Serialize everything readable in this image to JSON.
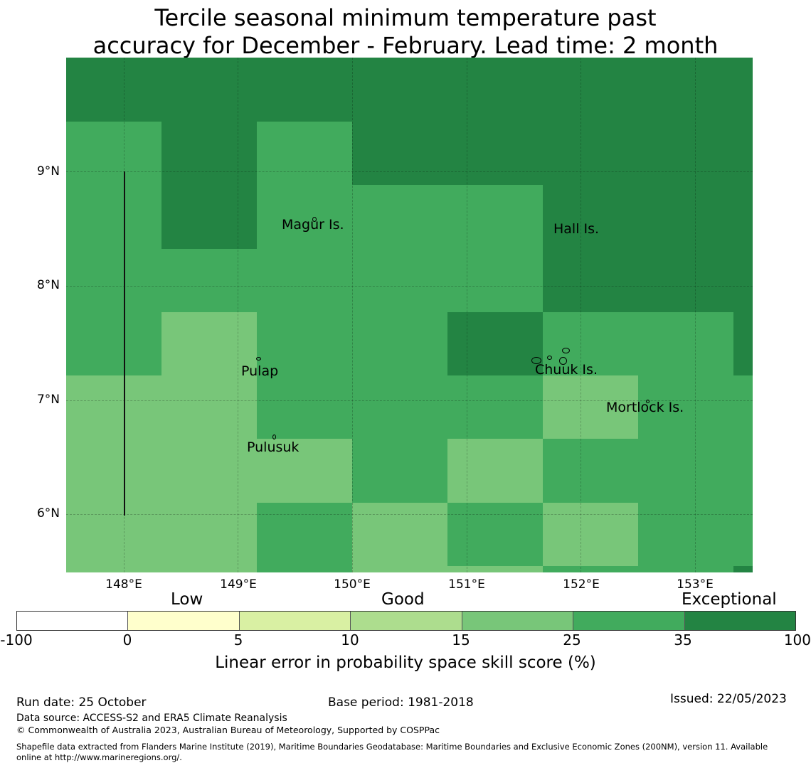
{
  "title_line1": "Tercile seasonal minimum temperature past",
  "title_line2": "accuracy for December - February. Lead time: 2 month",
  "map": {
    "lon_ticks": [
      "148°E",
      "149°E",
      "150°E",
      "151°E",
      "152°E",
      "153°E"
    ],
    "lat_ticks": [
      "9°N",
      "8°N",
      "7°N",
      "6°N"
    ],
    "places": [
      "Magur Is.",
      "Hall Is.",
      "Pulap",
      "Chuuk Is.",
      "Mortlock Is.",
      "Pulusuk"
    ]
  },
  "legend": {
    "categories": [
      "Low",
      "Good",
      "Exceptional"
    ],
    "ticks": [
      "-100",
      "0",
      "5",
      "10",
      "15",
      "25",
      "35",
      "100"
    ],
    "colors": [
      "#ffffff",
      "#ffffcc",
      "#d9f0a3",
      "#addd8e",
      "#78c679",
      "#41ab5d",
      "#238443"
    ],
    "label": "Linear error in probability space skill score (%)"
  },
  "footer": {
    "run_date": "Run date: 25 October",
    "base_period": "Base period: 1981-2018",
    "issued": "Issued: 22/05/2023",
    "data_source": "Data source: ACCESS-S2 and ERA5 Climate Reanalysis",
    "copyright": "© Commonwealth of Australia 2023, Australian Bureau of Meteorology, Supported by COSPPac",
    "shapefile_line1": "Shapefile data extracted from Flanders Marine Institute (2019), Maritime Boundaries Geodatabase: Maritime Boundaries and Exclusive Economic Zones (200NM), version 11. Available",
    "shapefile_line2": "online at http://www.marineregions.org/."
  }
}
